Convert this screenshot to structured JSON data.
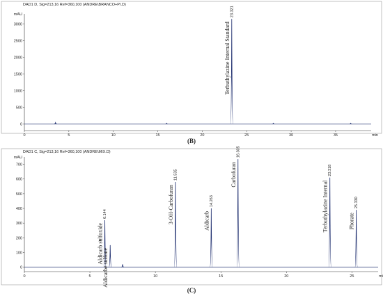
{
  "chart_data": [
    {
      "type": "chromatogram",
      "title": "DAD1 D, Sig=213,16 Ref=360,100 (ANDRE\\BRANCO+PI.D)",
      "caption": "(B)",
      "y_label": "mAU",
      "x_label": "min",
      "color": "#1a2a6c",
      "xlim": [
        0,
        39
      ],
      "ylim": [
        -200,
        3300
      ],
      "xticks": [
        0,
        5,
        10,
        15,
        20,
        25,
        30,
        35
      ],
      "yticks": [
        0,
        500,
        1000,
        1500,
        2000,
        2500,
        3000
      ],
      "peaks": [
        {
          "rt": 3.5,
          "height": 40
        },
        {
          "rt": 16,
          "height": 20
        },
        {
          "name": "Terbuthylazine Internal Standard",
          "rt": 23.321,
          "rt_label": "23.321",
          "height": 3150
        },
        {
          "rt": 28,
          "height": 20
        },
        {
          "rt": 36.7,
          "height": 20
        }
      ]
    },
    {
      "type": "chromatogram",
      "title": "DAD1 C, Sig=213,16 Ref=360,100 (ANDRE\\MIX.D)",
      "caption": "(C)",
      "y_label": "mAU",
      "x_label": "min",
      "color": "#1a2a6c",
      "xlim": [
        0,
        27
      ],
      "ylim": [
        -30,
        750
      ],
      "xticks": [
        0,
        5,
        10,
        15,
        20,
        25
      ],
      "yticks": [
        0,
        100,
        200,
        300,
        400,
        500,
        600,
        700
      ],
      "peaks": [
        {
          "name": "Aldicarb sulfoxide",
          "rt": 6.144,
          "rt_label": "6.144",
          "marker": "A",
          "height": 320
        },
        {
          "name": "Aldicarbe sulfone",
          "rt": 6.55,
          "height": 150
        },
        {
          "rt": 7.5,
          "height": 20
        },
        {
          "name": "3-OH-Carbofuran",
          "rt": 11.535,
          "rt_label": "11.535",
          "height": 580
        },
        {
          "name": "Aldicarb",
          "rt": 14.263,
          "rt_label": "14.263",
          "height": 400
        },
        {
          "name": "Carbofuran",
          "rt": 16.305,
          "rt_label": "16.305",
          "height": 735
        },
        {
          "name": "Terbuthylazine Internal",
          "rt": 23.318,
          "rt_label": "23.318",
          "height": 610
        },
        {
          "name": "Phorate",
          "rt": 25.33,
          "rt_label": "25.330",
          "height": 390
        }
      ]
    }
  ]
}
